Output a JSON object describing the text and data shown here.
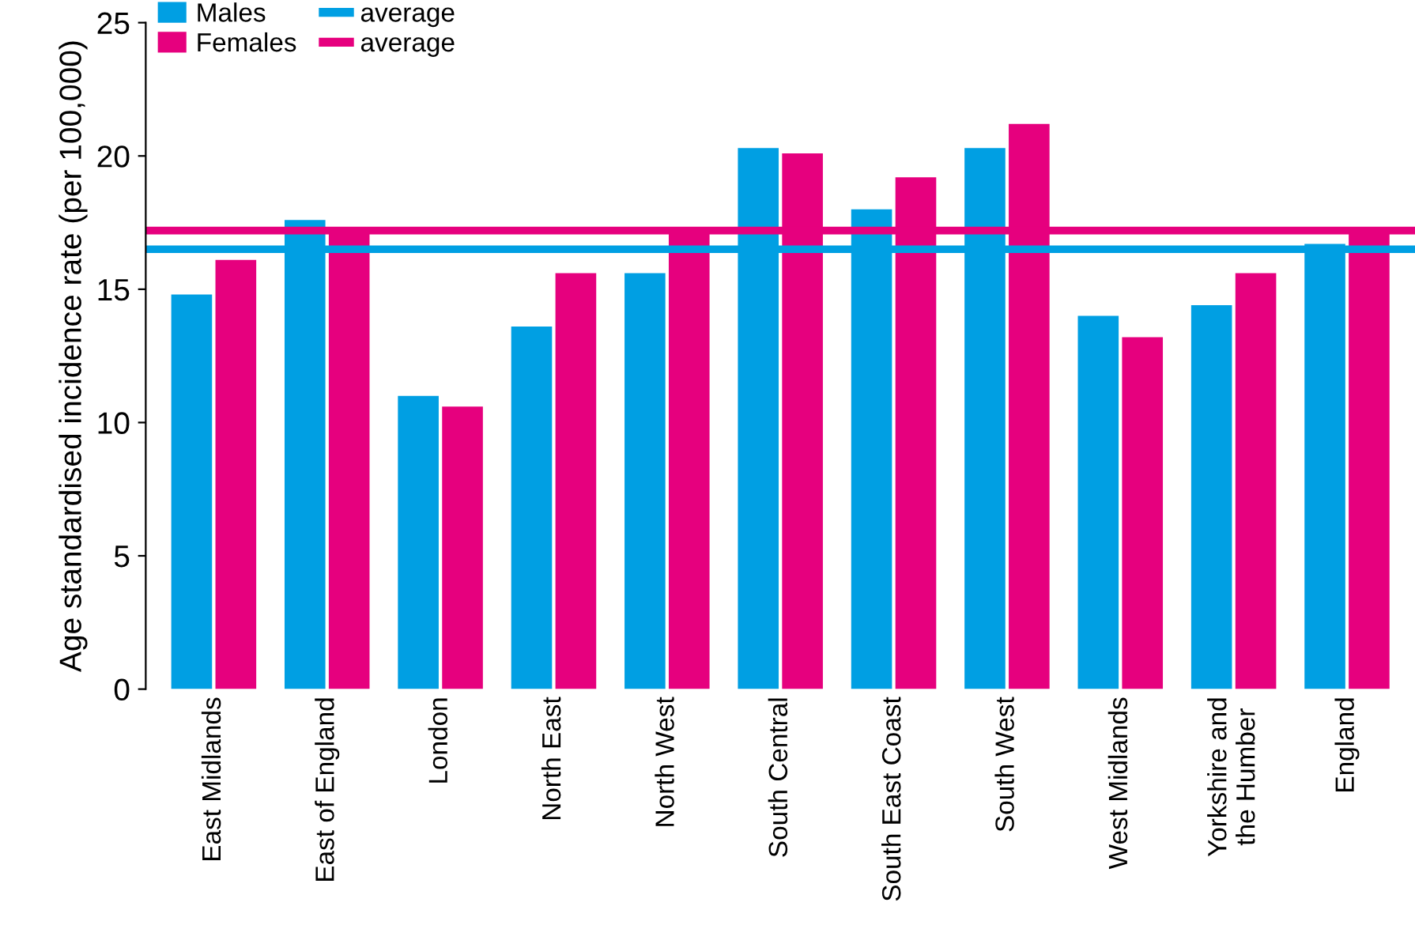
{
  "chart_data": {
    "type": "bar",
    "ylabel": "Age standardised incidence rate (per 100,000)",
    "categories": [
      "East Midlands",
      "East of England",
      "London",
      "North East",
      "North West",
      "South Central",
      "South East Coast",
      "South West",
      "West Midlands",
      "Yorkshire and\nthe Humber",
      "England"
    ],
    "series": [
      {
        "name": "Males",
        "color": "#009fe3",
        "values": [
          14.8,
          17.6,
          11.0,
          13.6,
          15.6,
          20.3,
          18.0,
          20.3,
          14.0,
          14.4,
          16.7
        ]
      },
      {
        "name": "Females",
        "color": "#e6007e",
        "values": [
          16.1,
          17.2,
          10.6,
          15.6,
          17.2,
          20.1,
          19.2,
          21.2,
          13.2,
          15.6,
          17.2
        ]
      }
    ],
    "ref_lines": [
      {
        "axis": "y",
        "value": 16.5,
        "label": "average",
        "color": "#009fe3"
      },
      {
        "axis": "y",
        "value": 17.2,
        "label": "average",
        "color": "#e6007e"
      }
    ],
    "ylim": [
      0,
      25
    ],
    "yticks": [
      0,
      5,
      10,
      15,
      20,
      25
    ],
    "grid": false,
    "legend": "top left"
  }
}
